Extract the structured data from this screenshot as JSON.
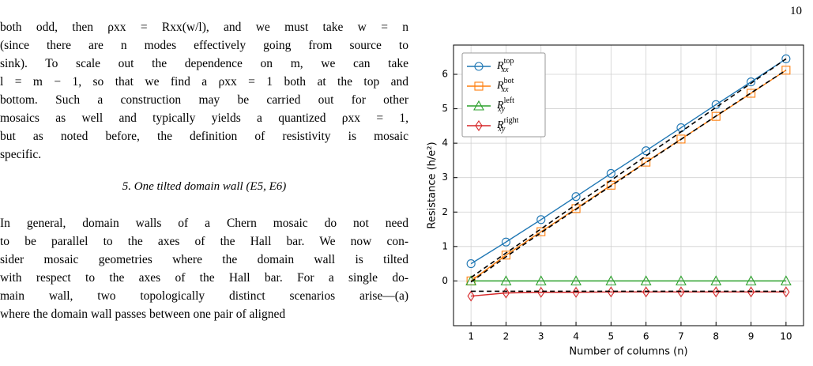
{
  "page_number": "10",
  "paragraphs": [
    {
      "lines": [
        "both odd, then ρxx = Rxx(w/l), and we must take w = n",
        "(since there are n modes effectively going from source to",
        "sink). To scale out the dependence on m, we can take",
        "l = m − 1, so that we find a ρxx = 1 both at the top and",
        "bottom. Such a construction may be carried out for other",
        "mosaics as well and typically yields a quantized ρxx = 1,",
        "but as noted before, the definition of resistivity is mosaic",
        "specific."
      ]
    },
    {
      "heading": "5.   One tilted domain wall (E5, E6)"
    },
    {
      "lines": [
        "In general, domain walls of a Chern mosaic do not need",
        "to be parallel to the axes of the Hall bar. We now con-",
        "sider mosaic geometries where the domain wall is tilted",
        "with respect to the axes of the Hall bar. For a single do-",
        "main wall, two topologically distinct scenarios arise—(a)",
        "where the domain wall passes between one pair of aligned"
      ]
    }
  ],
  "chart_data": {
    "type": "line",
    "xlabel": "Number of columns (n)",
    "ylabel": "Resistance (h/e²)",
    "x": [
      1,
      2,
      3,
      4,
      5,
      6,
      7,
      8,
      9,
      10
    ],
    "xlim": [
      0.5,
      10.5
    ],
    "xticks": [
      1,
      2,
      3,
      4,
      5,
      6,
      7,
      8,
      9,
      10
    ],
    "ylim": [
      -1.3,
      6.85
    ],
    "yticks": [
      0,
      1,
      2,
      3,
      4,
      5,
      6
    ],
    "grid": true,
    "legend": "upper left",
    "series": [
      {
        "name": "R",
        "subscript": "xx",
        "superscript": "top",
        "color": "#1f77b4",
        "marker": "circle",
        "values": [
          0.5,
          1.13,
          1.78,
          2.45,
          3.12,
          3.78,
          4.45,
          5.12,
          5.78,
          6.45
        ]
      },
      {
        "name": "R",
        "subscript": "xx",
        "superscript": "bot",
        "color": "#ff7f0e",
        "marker": "square",
        "values": [
          0,
          0.75,
          1.43,
          2.1,
          2.78,
          3.45,
          4.12,
          4.78,
          5.45,
          6.12
        ]
      },
      {
        "name": "R",
        "subscript": "xy",
        "superscript": "left",
        "color": "#2ca02c",
        "marker": "triangle",
        "values": [
          0,
          0,
          0,
          0,
          0,
          0,
          0,
          0,
          0,
          0
        ]
      },
      {
        "name": "R",
        "subscript": "xy",
        "superscript": "right",
        "color": "#d62728",
        "marker": "diamond",
        "values": [
          -0.44,
          -0.35,
          -0.33,
          -0.33,
          -0.32,
          -0.32,
          -0.32,
          -0.32,
          -0.32,
          -0.32
        ]
      }
    ],
    "fits": [
      {
        "color": "#000000",
        "values": [
          0.1,
          0.81,
          1.51,
          2.22,
          2.92,
          3.63,
          4.33,
          5.04,
          5.74,
          6.45
        ]
      },
      {
        "color": "#000000",
        "values": [
          -0.03,
          0.7,
          1.4,
          2.08,
          2.76,
          3.44,
          4.11,
          4.79,
          5.46,
          6.12
        ]
      },
      {
        "color": "#000000",
        "values": [
          -0.3,
          -0.3,
          -0.3,
          -0.3,
          -0.3,
          -0.3,
          -0.3,
          -0.3,
          -0.3,
          -0.3
        ]
      }
    ]
  }
}
